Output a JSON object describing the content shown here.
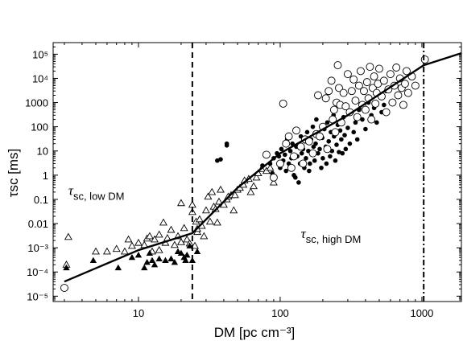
{
  "chart_data": {
    "type": "scatter",
    "x_scale": "log",
    "y_scale": "log",
    "xlim": [
      2.5,
      1900
    ],
    "ylim": [
      6e-06,
      300000
    ],
    "grid": false,
    "xlabel": "DM [pc cm⁻³]",
    "ylabel": "τsc [ms]",
    "x_ticks": [
      {
        "value": 10,
        "label": "10"
      },
      {
        "value": 100,
        "label": "100"
      },
      {
        "value": 1000,
        "label": "1000"
      }
    ],
    "y_ticks": [
      {
        "value": 100000,
        "label": "10⁵"
      },
      {
        "value": 10000,
        "label": "10⁴"
      },
      {
        "value": 1000,
        "label": "1000"
      },
      {
        "value": 100,
        "label": "100"
      },
      {
        "value": 10,
        "label": "10"
      },
      {
        "value": 1,
        "label": "1"
      },
      {
        "value": 0.1,
        "label": "0.1"
      },
      {
        "value": 0.01,
        "label": "0.01"
      },
      {
        "value": 0.001,
        "label": "10⁻³"
      },
      {
        "value": 0.0001,
        "label": "10⁻⁴"
      },
      {
        "value": 1e-05,
        "label": "10⁻⁵"
      }
    ],
    "annotations": [
      {
        "main": "τ",
        "sub": "sc, low DM",
        "x": 3.2,
        "y": 0.15
      },
      {
        "main": "τ",
        "sub": "sc, high DM",
        "x": 140,
        "y": 0.0025
      }
    ],
    "vlines": [
      {
        "x": 24,
        "style": "dashed"
      },
      {
        "x": 1030,
        "style": "dash-dot"
      }
    ],
    "fit_line": [
      [
        3,
        4e-05
      ],
      [
        10,
        0.0008
      ],
      [
        24,
        0.004
      ],
      [
        50,
        0.3
      ],
      [
        100,
        8
      ],
      [
        300,
        300
      ],
      [
        1030,
        35000
      ],
      [
        1900,
        110000
      ]
    ],
    "series": [
      {
        "marker": "open-triangle",
        "points": [
          [
            3.1,
            0.0002
          ],
          [
            3.2,
            0.0028
          ],
          [
            5,
            0.0007
          ],
          [
            6,
            0.0007
          ],
          [
            7,
            0.0009
          ],
          [
            8,
            0.0007
          ],
          [
            8.5,
            0.0022
          ],
          [
            9,
            0.0012
          ],
          [
            10,
            0.0016
          ],
          [
            11,
            0.0013
          ],
          [
            11.5,
            0.0024
          ],
          [
            12,
            0.003
          ],
          [
            12.5,
            0.0007
          ],
          [
            13,
            0.0022
          ],
          [
            14,
            0.0008
          ],
          [
            14,
            0.0035
          ],
          [
            15,
            0.011
          ],
          [
            15.5,
            0.0016
          ],
          [
            16,
            0.0025
          ],
          [
            17,
            0.0055
          ],
          [
            18,
            0.0013
          ],
          [
            19,
            0.003
          ],
          [
            20,
            0.07
          ],
          [
            20,
            0.0017
          ],
          [
            21,
            0.0065
          ],
          [
            22,
            0.0022
          ],
          [
            23,
            0.0015
          ],
          [
            24,
            0.06
          ],
          [
            24,
            0.03
          ],
          [
            25,
            0.0012
          ],
          [
            25.5,
            0.012
          ],
          [
            26,
            0.0045
          ],
          [
            26,
            0.006
          ],
          [
            27,
            0.015
          ],
          [
            28,
            0.008
          ],
          [
            29,
            0.003
          ],
          [
            30,
            0.035
          ],
          [
            31,
            0.13
          ],
          [
            32,
            0.012
          ],
          [
            33,
            0.2
          ],
          [
            34,
            0.05
          ],
          [
            35,
            0.04
          ],
          [
            36,
            0.011
          ],
          [
            37,
            0.08
          ],
          [
            38,
            0.25
          ],
          [
            40,
            0.06
          ],
          [
            42,
            0.1
          ],
          [
            43,
            0.13
          ],
          [
            45,
            0.15
          ],
          [
            47,
            0.035
          ],
          [
            48,
            0.15
          ],
          [
            50,
            0.25
          ],
          [
            52,
            0.3
          ],
          [
            55,
            0.4
          ],
          [
            56,
            0.6
          ],
          [
            60,
            0.7
          ],
          [
            62,
            0.2
          ],
          [
            65,
            0.35
          ],
          [
            68,
            0.8
          ],
          [
            70,
            1.2
          ],
          [
            74,
            1.8
          ],
          [
            80,
            1.5
          ],
          [
            85,
            2
          ],
          [
            90,
            0.5
          ]
        ]
      },
      {
        "marker": "filled-triangle",
        "points": [
          [
            3.1,
            0.00015
          ],
          [
            4.8,
            0.0003
          ],
          [
            7.2,
            0.00015
          ],
          [
            9,
            0.0004
          ],
          [
            10,
            0.0005
          ],
          [
            11,
            0.00015
          ],
          [
            11.5,
            0.00025
          ],
          [
            12,
            0.0006
          ],
          [
            12.5,
            0.0003
          ],
          [
            13,
            0.0002
          ],
          [
            14,
            0.00035
          ],
          [
            15.5,
            0.0003
          ],
          [
            17,
            0.00035
          ],
          [
            18,
            0.00025
          ],
          [
            19,
            0.0007
          ],
          [
            20,
            0.0006
          ],
          [
            21,
            0.0004
          ],
          [
            21.5,
            0.0003
          ],
          [
            22,
            0.0005
          ],
          [
            23,
            0.0012
          ],
          [
            24,
            0.0003
          ],
          [
            26,
            0.0007
          ]
        ]
      },
      {
        "marker": "filled-circle",
        "points": [
          [
            36,
            4
          ],
          [
            38,
            4.5
          ],
          [
            42,
            20
          ],
          [
            42,
            17
          ],
          [
            75,
            2.5
          ],
          [
            85,
            3
          ],
          [
            88,
            1.2
          ],
          [
            90,
            5
          ],
          [
            95,
            8
          ],
          [
            98,
            6
          ],
          [
            100,
            2
          ],
          [
            102,
            12
          ],
          [
            105,
            4
          ],
          [
            108,
            7
          ],
          [
            110,
            1.5
          ],
          [
            112,
            30
          ],
          [
            115,
            3
          ],
          [
            118,
            10
          ],
          [
            120,
            5
          ],
          [
            122,
            20
          ],
          [
            125,
            1
          ],
          [
            128,
            0.8
          ],
          [
            130,
            15
          ],
          [
            132,
            6
          ],
          [
            135,
            0.5
          ],
          [
            138,
            3
          ],
          [
            140,
            40
          ],
          [
            142,
            8
          ],
          [
            145,
            12
          ],
          [
            148,
            2
          ],
          [
            150,
            25
          ],
          [
            152,
            5
          ],
          [
            155,
            60
          ],
          [
            158,
            10
          ],
          [
            160,
            1.5
          ],
          [
            162,
            3
          ],
          [
            165,
            30
          ],
          [
            168,
            7
          ],
          [
            170,
            100
          ],
          [
            172,
            15
          ],
          [
            175,
            4
          ],
          [
            178,
            20
          ],
          [
            180,
            200
          ],
          [
            185,
            8
          ],
          [
            188,
            50
          ],
          [
            190,
            12
          ],
          [
            195,
            2
          ],
          [
            198,
            35
          ],
          [
            200,
            5
          ],
          [
            205,
            80
          ],
          [
            210,
            15
          ],
          [
            212,
            3
          ],
          [
            215,
            150
          ],
          [
            220,
            25
          ],
          [
            225,
            6
          ],
          [
            228,
            60
          ],
          [
            232,
            10
          ],
          [
            238,
            300
          ],
          [
            240,
            40
          ],
          [
            245,
            4
          ],
          [
            250,
            18
          ],
          [
            255,
            120
          ],
          [
            260,
            9
          ],
          [
            265,
            70
          ],
          [
            270,
            30
          ],
          [
            275,
            8
          ],
          [
            280,
            250
          ],
          [
            285,
            45
          ],
          [
            290,
            12
          ],
          [
            300,
            90
          ],
          [
            310,
            20
          ],
          [
            320,
            400
          ],
          [
            330,
            60
          ],
          [
            340,
            150
          ],
          [
            350,
            30
          ],
          [
            360,
            500
          ],
          [
            380,
            200
          ],
          [
            400,
            80
          ],
          [
            420,
            1000
          ],
          [
            440,
            300
          ],
          [
            460,
            600
          ],
          [
            480,
            150
          ],
          [
            500,
            2000
          ],
          [
            520,
            400
          ],
          [
            540,
            800
          ],
          [
            560,
            3000
          ]
        ]
      },
      {
        "marker": "open-circle",
        "points": [
          [
            3,
            2.2e-05
          ],
          [
            80,
            7
          ],
          [
            90,
            0.8
          ],
          [
            100,
            3
          ],
          [
            105,
            900
          ],
          [
            110,
            20
          ],
          [
            115,
            40
          ],
          [
            120,
            2
          ],
          [
            125,
            6
          ],
          [
            130,
            70
          ],
          [
            140,
            15
          ],
          [
            145,
            3
          ],
          [
            150,
            30
          ],
          [
            160,
            25
          ],
          [
            170,
            8
          ],
          [
            180,
            50
          ],
          [
            185,
            2000
          ],
          [
            190,
            40
          ],
          [
            200,
            100
          ],
          [
            210,
            1500
          ],
          [
            215,
            12
          ],
          [
            220,
            3000
          ],
          [
            230,
            8000
          ],
          [
            235,
            200
          ],
          [
            240,
            500
          ],
          [
            245,
            60
          ],
          [
            250,
            1000
          ],
          [
            255,
            35000
          ],
          [
            260,
            4000
          ],
          [
            265,
            800
          ],
          [
            270,
            150
          ],
          [
            280,
            2500
          ],
          [
            290,
            700
          ],
          [
            300,
            15000
          ],
          [
            310,
            400
          ],
          [
            320,
            3000
          ],
          [
            330,
            9000
          ],
          [
            340,
            1200
          ],
          [
            350,
            250
          ],
          [
            360,
            5000
          ],
          [
            370,
            20000
          ],
          [
            380,
            800
          ],
          [
            390,
            3000
          ],
          [
            400,
            500
          ],
          [
            410,
            7000
          ],
          [
            420,
            1500
          ],
          [
            430,
            30000
          ],
          [
            440,
            200
          ],
          [
            450,
            4000
          ],
          [
            460,
            12000
          ],
          [
            470,
            900
          ],
          [
            480,
            2500
          ],
          [
            490,
            6000
          ],
          [
            500,
            25000
          ],
          [
            520,
            1800
          ],
          [
            540,
            8000
          ],
          [
            560,
            400
          ],
          [
            580,
            3500
          ],
          [
            600,
            15000
          ],
          [
            620,
            1000
          ],
          [
            640,
            5000
          ],
          [
            660,
            28000
          ],
          [
            680,
            2000
          ],
          [
            700,
            10000
          ],
          [
            720,
            4000
          ],
          [
            740,
            800
          ],
          [
            760,
            6000
          ],
          [
            780,
            20000
          ],
          [
            800,
            2500
          ],
          [
            850,
            12000
          ],
          [
            900,
            5000
          ],
          [
            1050,
            60000
          ]
        ]
      }
    ]
  }
}
